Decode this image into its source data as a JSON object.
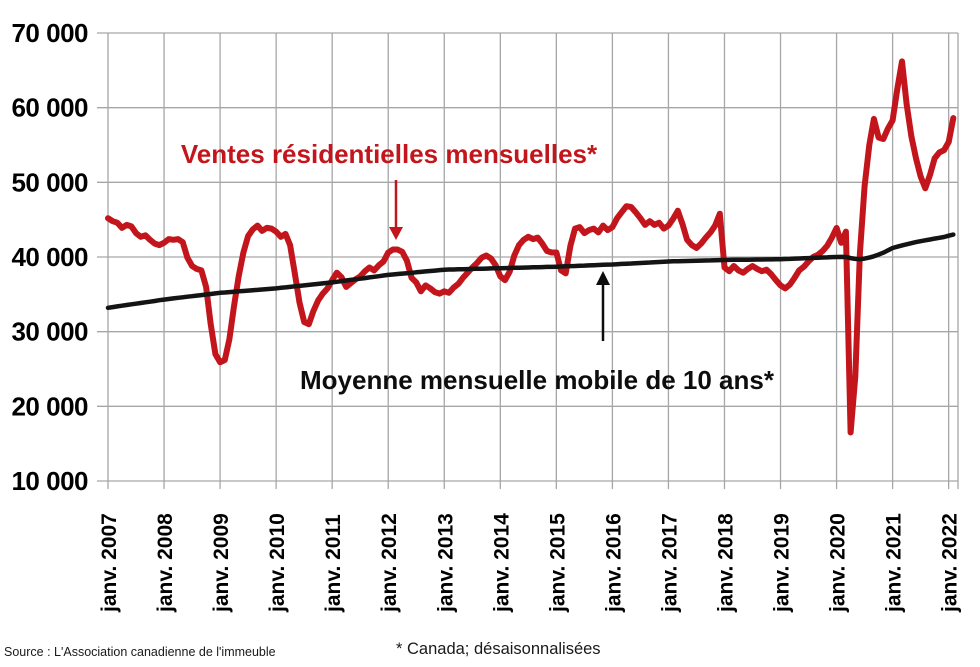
{
  "footer": {
    "source": "Source : L'Association canadienne de l'immeuble",
    "note": "* Canada; désaisonnalisées"
  },
  "chart_data": {
    "type": "line",
    "title": "",
    "xlabel": "",
    "ylabel": "",
    "x_unit": "month",
    "x_start": "janv. 2007",
    "x_end": "févr. 2022",
    "x_tick_labels": [
      "janv. 2007",
      "janv. 2008",
      "janv. 2009",
      "janv. 2010",
      "janv. 2011",
      "janv. 2012",
      "janv. 2013",
      "janv. 2014",
      "janv. 2015",
      "janv. 2016",
      "janv. 2017",
      "janv. 2018",
      "janv. 2019",
      "janv. 2020",
      "janv. 2021",
      "janv. 2022"
    ],
    "ylim": [
      10000,
      70000
    ],
    "y_step": 10000,
    "y_tick_labels": [
      "10 000",
      "20 000",
      "30 000",
      "40 000",
      "50 000",
      "60 000",
      "70 000"
    ],
    "grid": true,
    "grid_color": "#a6a6a6",
    "legend_position": "inline-annotations",
    "series": [
      {
        "name": "Ventes résidentielles mensuelles*",
        "color": "#c3161c",
        "points_to": "janv. 2012",
        "values": [
          45200,
          44800,
          44600,
          43900,
          44300,
          44100,
          43200,
          42700,
          42900,
          42300,
          41800,
          41600,
          41900,
          42400,
          42300,
          42400,
          42000,
          39900,
          38800,
          38400,
          38200,
          36000,
          31000,
          27000,
          25900,
          26200,
          29000,
          33500,
          37500,
          40600,
          42800,
          43700,
          44200,
          43500,
          43900,
          43800,
          43400,
          42700,
          43100,
          41600,
          37800,
          33900,
          31300,
          31000,
          32800,
          34200,
          35100,
          35800,
          36900,
          37900,
          37300,
          36000,
          36500,
          37000,
          37400,
          38100,
          38600,
          38200,
          38900,
          39400,
          40600,
          41000,
          41000,
          40700,
          39500,
          37200,
          36600,
          35400,
          36200,
          35800,
          35300,
          35100,
          35400,
          35200,
          35900,
          36400,
          37200,
          37900,
          38600,
          39200,
          39900,
          40200,
          39800,
          38900,
          37400,
          36900,
          38000,
          40200,
          41600,
          42300,
          42700,
          42400,
          42600,
          41800,
          40800,
          40600,
          40600,
          38200,
          37800,
          41500,
          43800,
          44000,
          43200,
          43600,
          43800,
          43300,
          44200,
          43600,
          44000,
          45200,
          46000,
          46800,
          46700,
          46000,
          45200,
          44300,
          44800,
          44300,
          44600,
          43800,
          44200,
          45100,
          46200,
          44400,
          42300,
          41600,
          41200,
          41800,
          42600,
          43300,
          44200,
          45800,
          38600,
          38100,
          38800,
          38200,
          37900,
          38400,
          38800,
          38400,
          38100,
          38300,
          37700,
          36900,
          36200,
          35800,
          36300,
          37200,
          38200,
          38700,
          39400,
          40000,
          40300,
          40800,
          41500,
          42600,
          43900,
          41900,
          43400,
          16500,
          24000,
          40500,
          49500,
          55000,
          58500,
          56000,
          55800,
          57200,
          58300,
          62500,
          66200,
          60500,
          56200,
          53200,
          50800,
          49200,
          51000,
          53200,
          54000,
          54300,
          55400,
          58600
        ]
      },
      {
        "name": "Moyenne mensuelle mobile de 10 ans*",
        "color": "#141414",
        "points_to": "janv. 2016",
        "values": [
          33200,
          33290,
          33380,
          33480,
          33570,
          33660,
          33750,
          33840,
          33930,
          34020,
          34110,
          34210,
          34300,
          34380,
          34450,
          34530,
          34600,
          34680,
          34750,
          34830,
          34900,
          34980,
          35050,
          35130,
          35200,
          35250,
          35300,
          35350,
          35400,
          35450,
          35500,
          35550,
          35600,
          35650,
          35700,
          35750,
          35800,
          35870,
          35930,
          36000,
          36070,
          36130,
          36200,
          36270,
          36330,
          36400,
          36470,
          36530,
          36600,
          36680,
          36770,
          36850,
          36930,
          37020,
          37100,
          37180,
          37270,
          37350,
          37430,
          37520,
          37600,
          37660,
          37720,
          37780,
          37830,
          37890,
          37950,
          38010,
          38070,
          38130,
          38180,
          38240,
          38300,
          38320,
          38330,
          38350,
          38370,
          38380,
          38400,
          38420,
          38430,
          38450,
          38470,
          38480,
          38500,
          38520,
          38530,
          38550,
          38570,
          38580,
          38600,
          38620,
          38630,
          38650,
          38670,
          38680,
          38700,
          38730,
          38750,
          38780,
          38800,
          38830,
          38850,
          38880,
          38900,
          38930,
          38950,
          38980,
          39000,
          39030,
          39070,
          39100,
          39130,
          39170,
          39200,
          39230,
          39270,
          39300,
          39330,
          39370,
          39400,
          39420,
          39430,
          39450,
          39470,
          39480,
          39500,
          39520,
          39530,
          39550,
          39570,
          39580,
          39600,
          39610,
          39620,
          39630,
          39630,
          39640,
          39650,
          39660,
          39670,
          39680,
          39680,
          39690,
          39700,
          39730,
          39750,
          39780,
          39800,
          39830,
          39850,
          39880,
          39900,
          39930,
          39950,
          39980,
          40000,
          40020,
          40000,
          39850,
          39750,
          39720,
          39780,
          39920,
          40100,
          40320,
          40580,
          40880,
          41200,
          41380,
          41550,
          41700,
          41850,
          42000,
          42120,
          42240,
          42350,
          42460,
          42570,
          42680,
          42850,
          43000
        ]
      }
    ]
  }
}
